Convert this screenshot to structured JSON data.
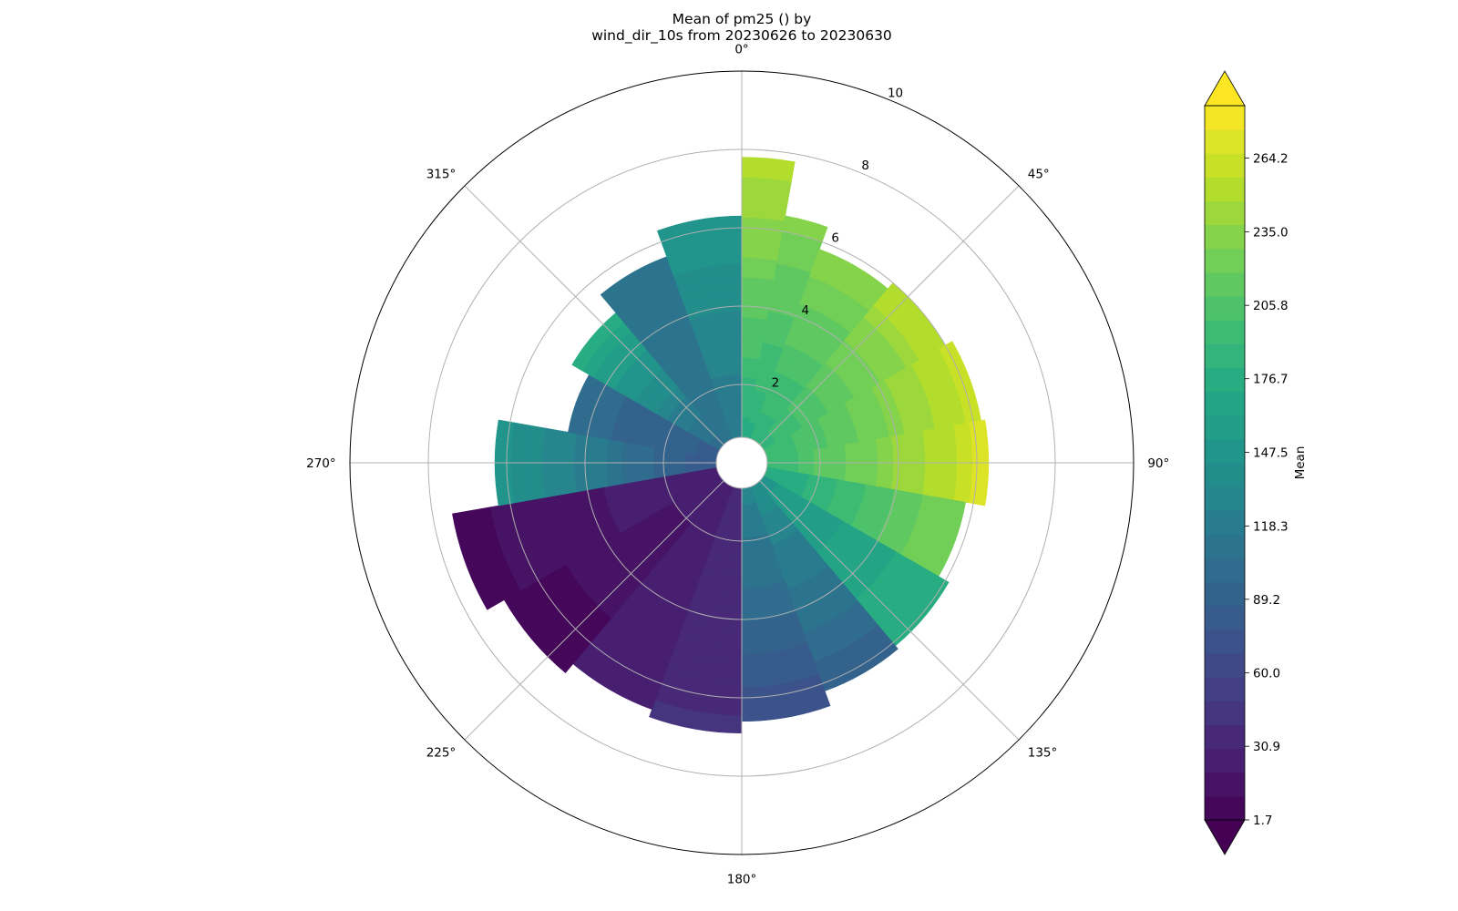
{
  "chart_data": {
    "type": "polar-contour",
    "title": [
      "Mean of pm25 () by",
      "wind_dir_10s from 20230626 to 20230630"
    ],
    "angle_ticks": [
      {
        "deg": 0,
        "label": "0°"
      },
      {
        "deg": 45,
        "label": "45°"
      },
      {
        "deg": 90,
        "label": "90°"
      },
      {
        "deg": 135,
        "label": "135°"
      },
      {
        "deg": 180,
        "label": "180°"
      },
      {
        "deg": 225,
        "label": "225°"
      },
      {
        "deg": 270,
        "label": "270°"
      },
      {
        "deg": 315,
        "label": "315°"
      }
    ],
    "radial_ticks": [
      {
        "value": 2,
        "label": "2"
      },
      {
        "value": 4,
        "label": "4"
      },
      {
        "value": 6,
        "label": "6"
      },
      {
        "value": 8,
        "label": "8"
      },
      {
        "value": 10,
        "label": "10"
      }
    ],
    "r_range": [
      0,
      10
    ],
    "inner_hole_radius": 0.65,
    "direction": "clockwise, 0° at top",
    "grid": true,
    "colorscale": "viridis",
    "colorbar": {
      "label": "Mean",
      "range": [
        1.7,
        285.0
      ],
      "ticks": [
        1.7,
        30.9,
        60.0,
        89.2,
        118.3,
        147.5,
        176.7,
        205.8,
        235.0,
        264.2
      ],
      "tick_labels": [
        "1.7",
        "30.9",
        "60.0",
        "89.2",
        "118.3",
        "147.5",
        "176.7",
        "205.8",
        "235.0",
        "264.2"
      ],
      "levels": 30,
      "extend": "both"
    },
    "sectors": [
      {
        "a0": 0,
        "a1": 10,
        "r_outer": 7.8,
        "value_outer": 255,
        "value_inner": 175
      },
      {
        "a0": 10,
        "a1": 20,
        "r_outer": 6.4,
        "value_outer": 232,
        "value_inner": 178
      },
      {
        "a0": 20,
        "a1": 40,
        "r_outer": 5.8,
        "value_outer": 235,
        "value_inner": 182
      },
      {
        "a0": 40,
        "a1": 60,
        "r_outer": 6.0,
        "value_outer": 255,
        "value_inner": 185
      },
      {
        "a0": 60,
        "a1": 80,
        "r_outer": 6.2,
        "value_outer": 262,
        "value_inner": 188
      },
      {
        "a0": 80,
        "a1": 100,
        "r_outer": 6.3,
        "value_outer": 270,
        "value_inner": 190
      },
      {
        "a0": 100,
        "a1": 120,
        "r_outer": 5.8,
        "value_outer": 230,
        "value_inner": 170
      },
      {
        "a0": 120,
        "a1": 140,
        "r_outer": 6.1,
        "value_outer": 180,
        "value_inner": 150
      },
      {
        "a0": 140,
        "a1": 160,
        "r_outer": 6.2,
        "value_outer": 90,
        "value_inner": 140
      },
      {
        "a0": 160,
        "a1": 180,
        "r_outer": 6.6,
        "value_outer": 70,
        "value_inner": 130
      },
      {
        "a0": 180,
        "a1": 200,
        "r_outer": 6.9,
        "value_outer": 40,
        "value_inner": 35
      },
      {
        "a0": 200,
        "a1": 220,
        "r_outer": 6.7,
        "value_outer": 22,
        "value_inner": 28
      },
      {
        "a0": 220,
        "a1": 240,
        "r_outer": 7.0,
        "value_outer": 6,
        "value_inner": 25
      },
      {
        "a0": 240,
        "a1": 260,
        "r_outer": 7.5,
        "value_outer": 8,
        "value_inner": 30
      },
      {
        "a0": 260,
        "a1": 280,
        "r_outer": 6.3,
        "value_outer": 150,
        "value_inner": 75
      },
      {
        "a0": 280,
        "a1": 300,
        "r_outer": 4.5,
        "value_outer": 100,
        "value_inner": 85
      },
      {
        "a0": 300,
        "a1": 320,
        "r_outer": 5.0,
        "value_outer": 175,
        "value_inner": 100
      },
      {
        "a0": 320,
        "a1": 340,
        "r_outer": 5.6,
        "value_outer": 110,
        "value_inner": 110
      },
      {
        "a0": 340,
        "a1": 360,
        "r_outer": 6.3,
        "value_outer": 150,
        "value_inner": 115
      }
    ]
  }
}
